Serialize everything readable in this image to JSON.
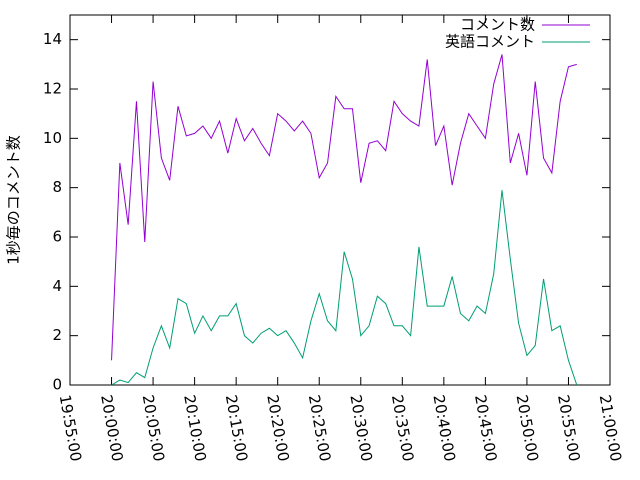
{
  "chart_data": {
    "type": "line",
    "ylabel": "1秒毎のコメント数",
    "x": [
      "20:00:00",
      "20:01:00",
      "20:02:00",
      "20:03:00",
      "20:04:00",
      "20:05:00",
      "20:06:00",
      "20:07:00",
      "20:08:00",
      "20:09:00",
      "20:10:00",
      "20:11:00",
      "20:12:00",
      "20:13:00",
      "20:14:00",
      "20:15:00",
      "20:16:00",
      "20:17:00",
      "20:18:00",
      "20:19:00",
      "20:20:00",
      "20:21:00",
      "20:22:00",
      "20:23:00",
      "20:24:00",
      "20:25:00",
      "20:26:00",
      "20:27:00",
      "20:28:00",
      "20:29:00",
      "20:30:00",
      "20:31:00",
      "20:32:00",
      "20:33:00",
      "20:34:00",
      "20:35:00",
      "20:36:00",
      "20:37:00",
      "20:38:00",
      "20:39:00",
      "20:40:00",
      "20:41:00",
      "20:42:00",
      "20:43:00",
      "20:44:00",
      "20:45:00",
      "20:46:00",
      "20:47:00",
      "20:48:00",
      "20:49:00",
      "20:50:00",
      "20:51:00",
      "20:52:00",
      "20:53:00",
      "20:54:00",
      "20:55:00",
      "20:56:00"
    ],
    "series": [
      {
        "name": "コメント数",
        "color": "#9400d3",
        "values": [
          1.0,
          9.0,
          6.5,
          11.5,
          5.8,
          12.3,
          9.2,
          8.3,
          11.3,
          10.1,
          10.2,
          10.5,
          10.0,
          10.7,
          9.4,
          10.8,
          9.9,
          10.4,
          9.8,
          9.3,
          11.0,
          10.7,
          10.3,
          10.7,
          10.2,
          8.4,
          9.0,
          11.7,
          11.2,
          11.2,
          8.2,
          9.8,
          9.9,
          9.5,
          11.5,
          11.0,
          10.7,
          10.5,
          13.2,
          9.7,
          10.5,
          8.1,
          9.8,
          11.0,
          10.5,
          10.0,
          12.2,
          13.4,
          9.0,
          10.2,
          8.5,
          12.3,
          9.2,
          8.6,
          11.5,
          12.9,
          13.0
        ]
      },
      {
        "name": "英語コメント",
        "color": "#009e73",
        "values": [
          0.0,
          0.2,
          0.1,
          0.5,
          0.3,
          1.5,
          2.4,
          1.5,
          3.5,
          3.3,
          2.1,
          2.8,
          2.2,
          2.8,
          2.8,
          3.3,
          2.0,
          1.7,
          2.1,
          2.3,
          2.0,
          2.2,
          1.7,
          1.1,
          2.6,
          3.7,
          2.6,
          2.2,
          5.4,
          4.3,
          2.0,
          2.4,
          3.6,
          3.3,
          2.4,
          2.4,
          2.0,
          5.6,
          3.2,
          3.2,
          3.2,
          4.4,
          2.9,
          2.6,
          3.2,
          2.9,
          4.5,
          7.9,
          5.1,
          2.5,
          1.2,
          1.6,
          4.3,
          2.2,
          2.4,
          1.0,
          0.0
        ]
      }
    ],
    "xlim": [
      "19:55:00",
      "21:00:00"
    ],
    "xticks": [
      "19:55:00",
      "20:00:00",
      "20:05:00",
      "20:10:00",
      "20:15:00",
      "20:20:00",
      "20:25:00",
      "20:30:00",
      "20:35:00",
      "20:40:00",
      "20:45:00",
      "20:50:00",
      "20:55:00",
      "21:00:00"
    ],
    "ylim": [
      0,
      15
    ],
    "yticks": [
      0,
      2,
      4,
      6,
      8,
      10,
      12,
      14
    ],
    "legend": "top-right"
  }
}
